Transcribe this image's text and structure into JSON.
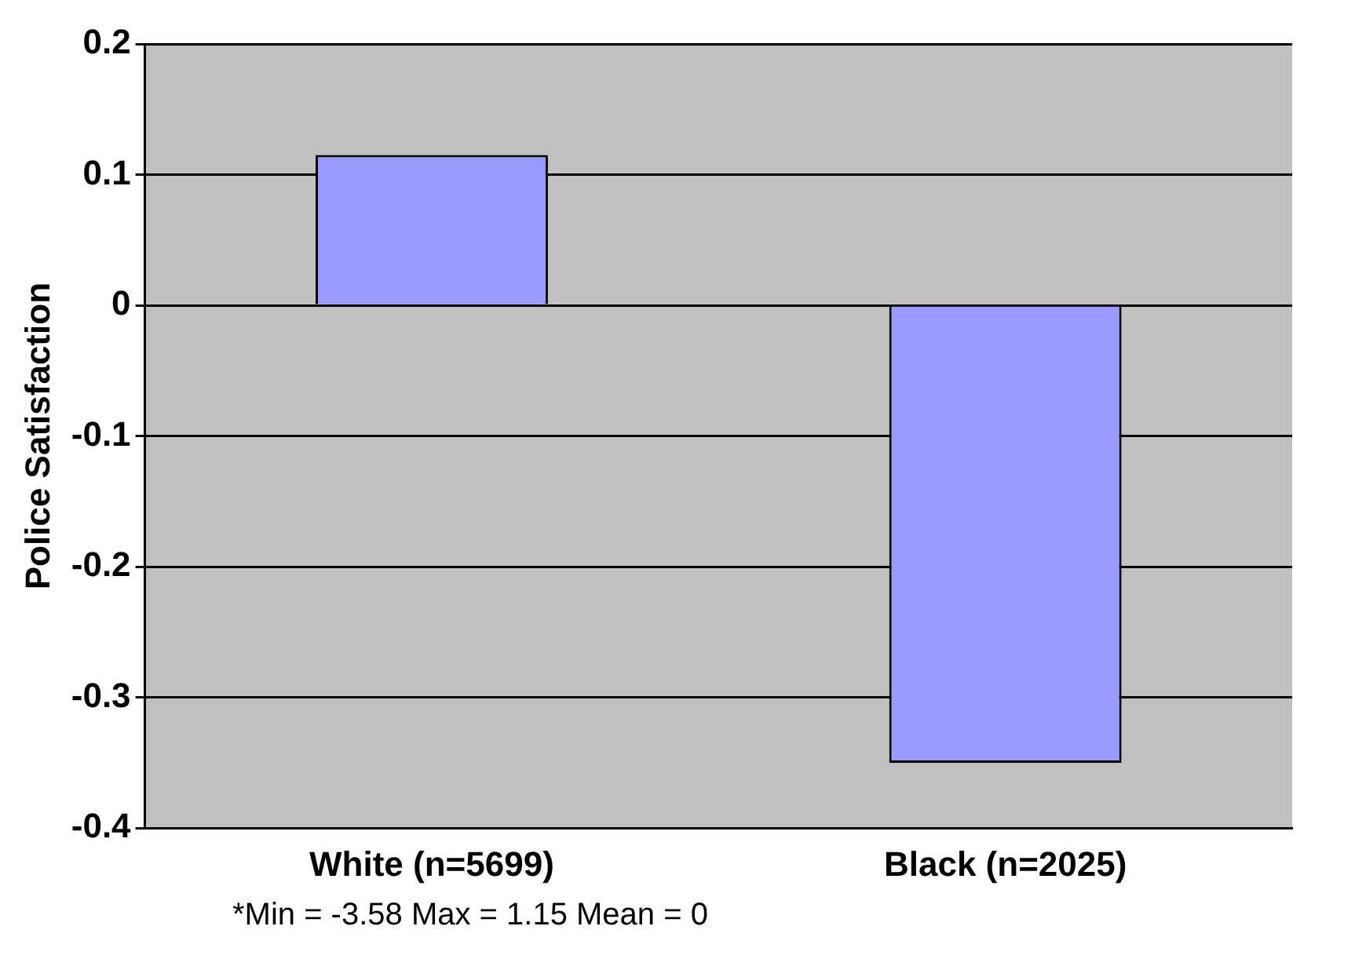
{
  "chart_data": {
    "type": "bar",
    "ylabel": "Police Satisfaction",
    "categories": [
      "White (n=5699)",
      "Black (n=2025)"
    ],
    "series": [
      {
        "color": "#9999ff",
        "values": [
          0.115,
          -0.35
        ]
      }
    ],
    "ylim": [
      -0.4,
      0.2
    ],
    "yticks": [
      -0.4,
      -0.3,
      -0.2,
      -0.1,
      0,
      0.1,
      0.2
    ],
    "grid": "y",
    "legend": false,
    "annotations": [
      "*Min = -3.58  Max = 1.15  Mean = 0"
    ]
  }
}
